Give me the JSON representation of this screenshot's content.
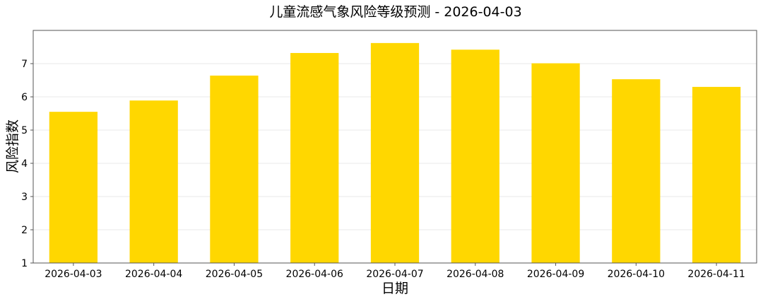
{
  "chart_data": {
    "type": "bar",
    "title": "儿童流感气象风险等级预测 - 2026-04-03",
    "xlabel": "日期",
    "ylabel": "风险指数",
    "categories": [
      "2026-04-03",
      "2026-04-04",
      "2026-04-05",
      "2026-04-06",
      "2026-04-07",
      "2026-04-08",
      "2026-04-09",
      "2026-04-10",
      "2026-04-11"
    ],
    "values": [
      5.55,
      5.89,
      6.64,
      7.32,
      7.62,
      7.42,
      7.01,
      6.53,
      6.3
    ],
    "ylim": [
      1,
      8
    ],
    "yticks": [
      1,
      2,
      3,
      4,
      5,
      6,
      7
    ],
    "grid": "horizontal",
    "bar_color": "#FFD700"
  }
}
